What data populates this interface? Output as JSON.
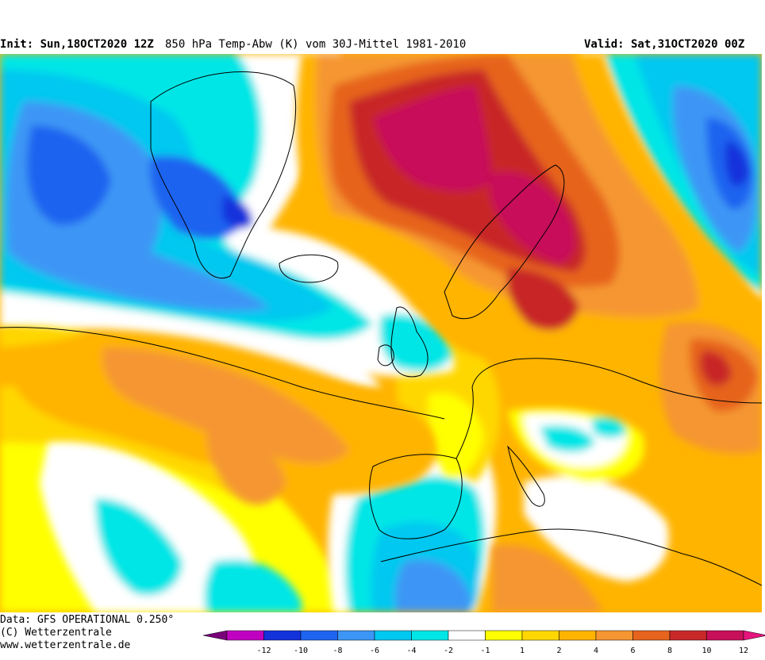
{
  "header": {
    "init": "Init: Sun,18OCT2020 12Z",
    "parameter": "850 hPa Temp-Abw (K) vom 30J-Mittel 1981-2010",
    "valid": "Valid: Sat,31OCT2020 00Z"
  },
  "footer": {
    "data_source": "Data: GFS OPERATIONAL 0.250°",
    "copyright": "(C) Wetterzentrale",
    "website": "www.wetterzentrale.de"
  },
  "legend": {
    "ticks": [
      "-12",
      "-10",
      "-8",
      "-6",
      "-4",
      "-2",
      "-1",
      "1",
      "2",
      "4",
      "6",
      "8",
      "10",
      "12"
    ],
    "colors": [
      "#c000c0",
      "#1432dc",
      "#1e64f0",
      "#3c96f5",
      "#00c8f0",
      "#00e6e6",
      "#ffffff",
      "#ffff00",
      "#ffd700",
      "#ffb400",
      "#f59632",
      "#e6641e",
      "#c82828",
      "#c8105a"
    ],
    "end_low": "#780078",
    "end_high": "#e6147d"
  },
  "map": {
    "region": "Europe / North Atlantic",
    "colors": {
      "zero": "#ffffff",
      "neg1": "#00e6e6",
      "neg2": "#00c8f0",
      "neg4": "#3c96f5",
      "neg6": "#1e64f0",
      "neg8": "#1432dc",
      "pos1": "#ffff00",
      "pos2": "#ffd700",
      "pos4": "#ffb400",
      "pos6": "#f59632",
      "pos8": "#e6641e",
      "pos10": "#c82828",
      "pos12": "#c8105a",
      "extreme_neg": "#c000c0"
    }
  }
}
